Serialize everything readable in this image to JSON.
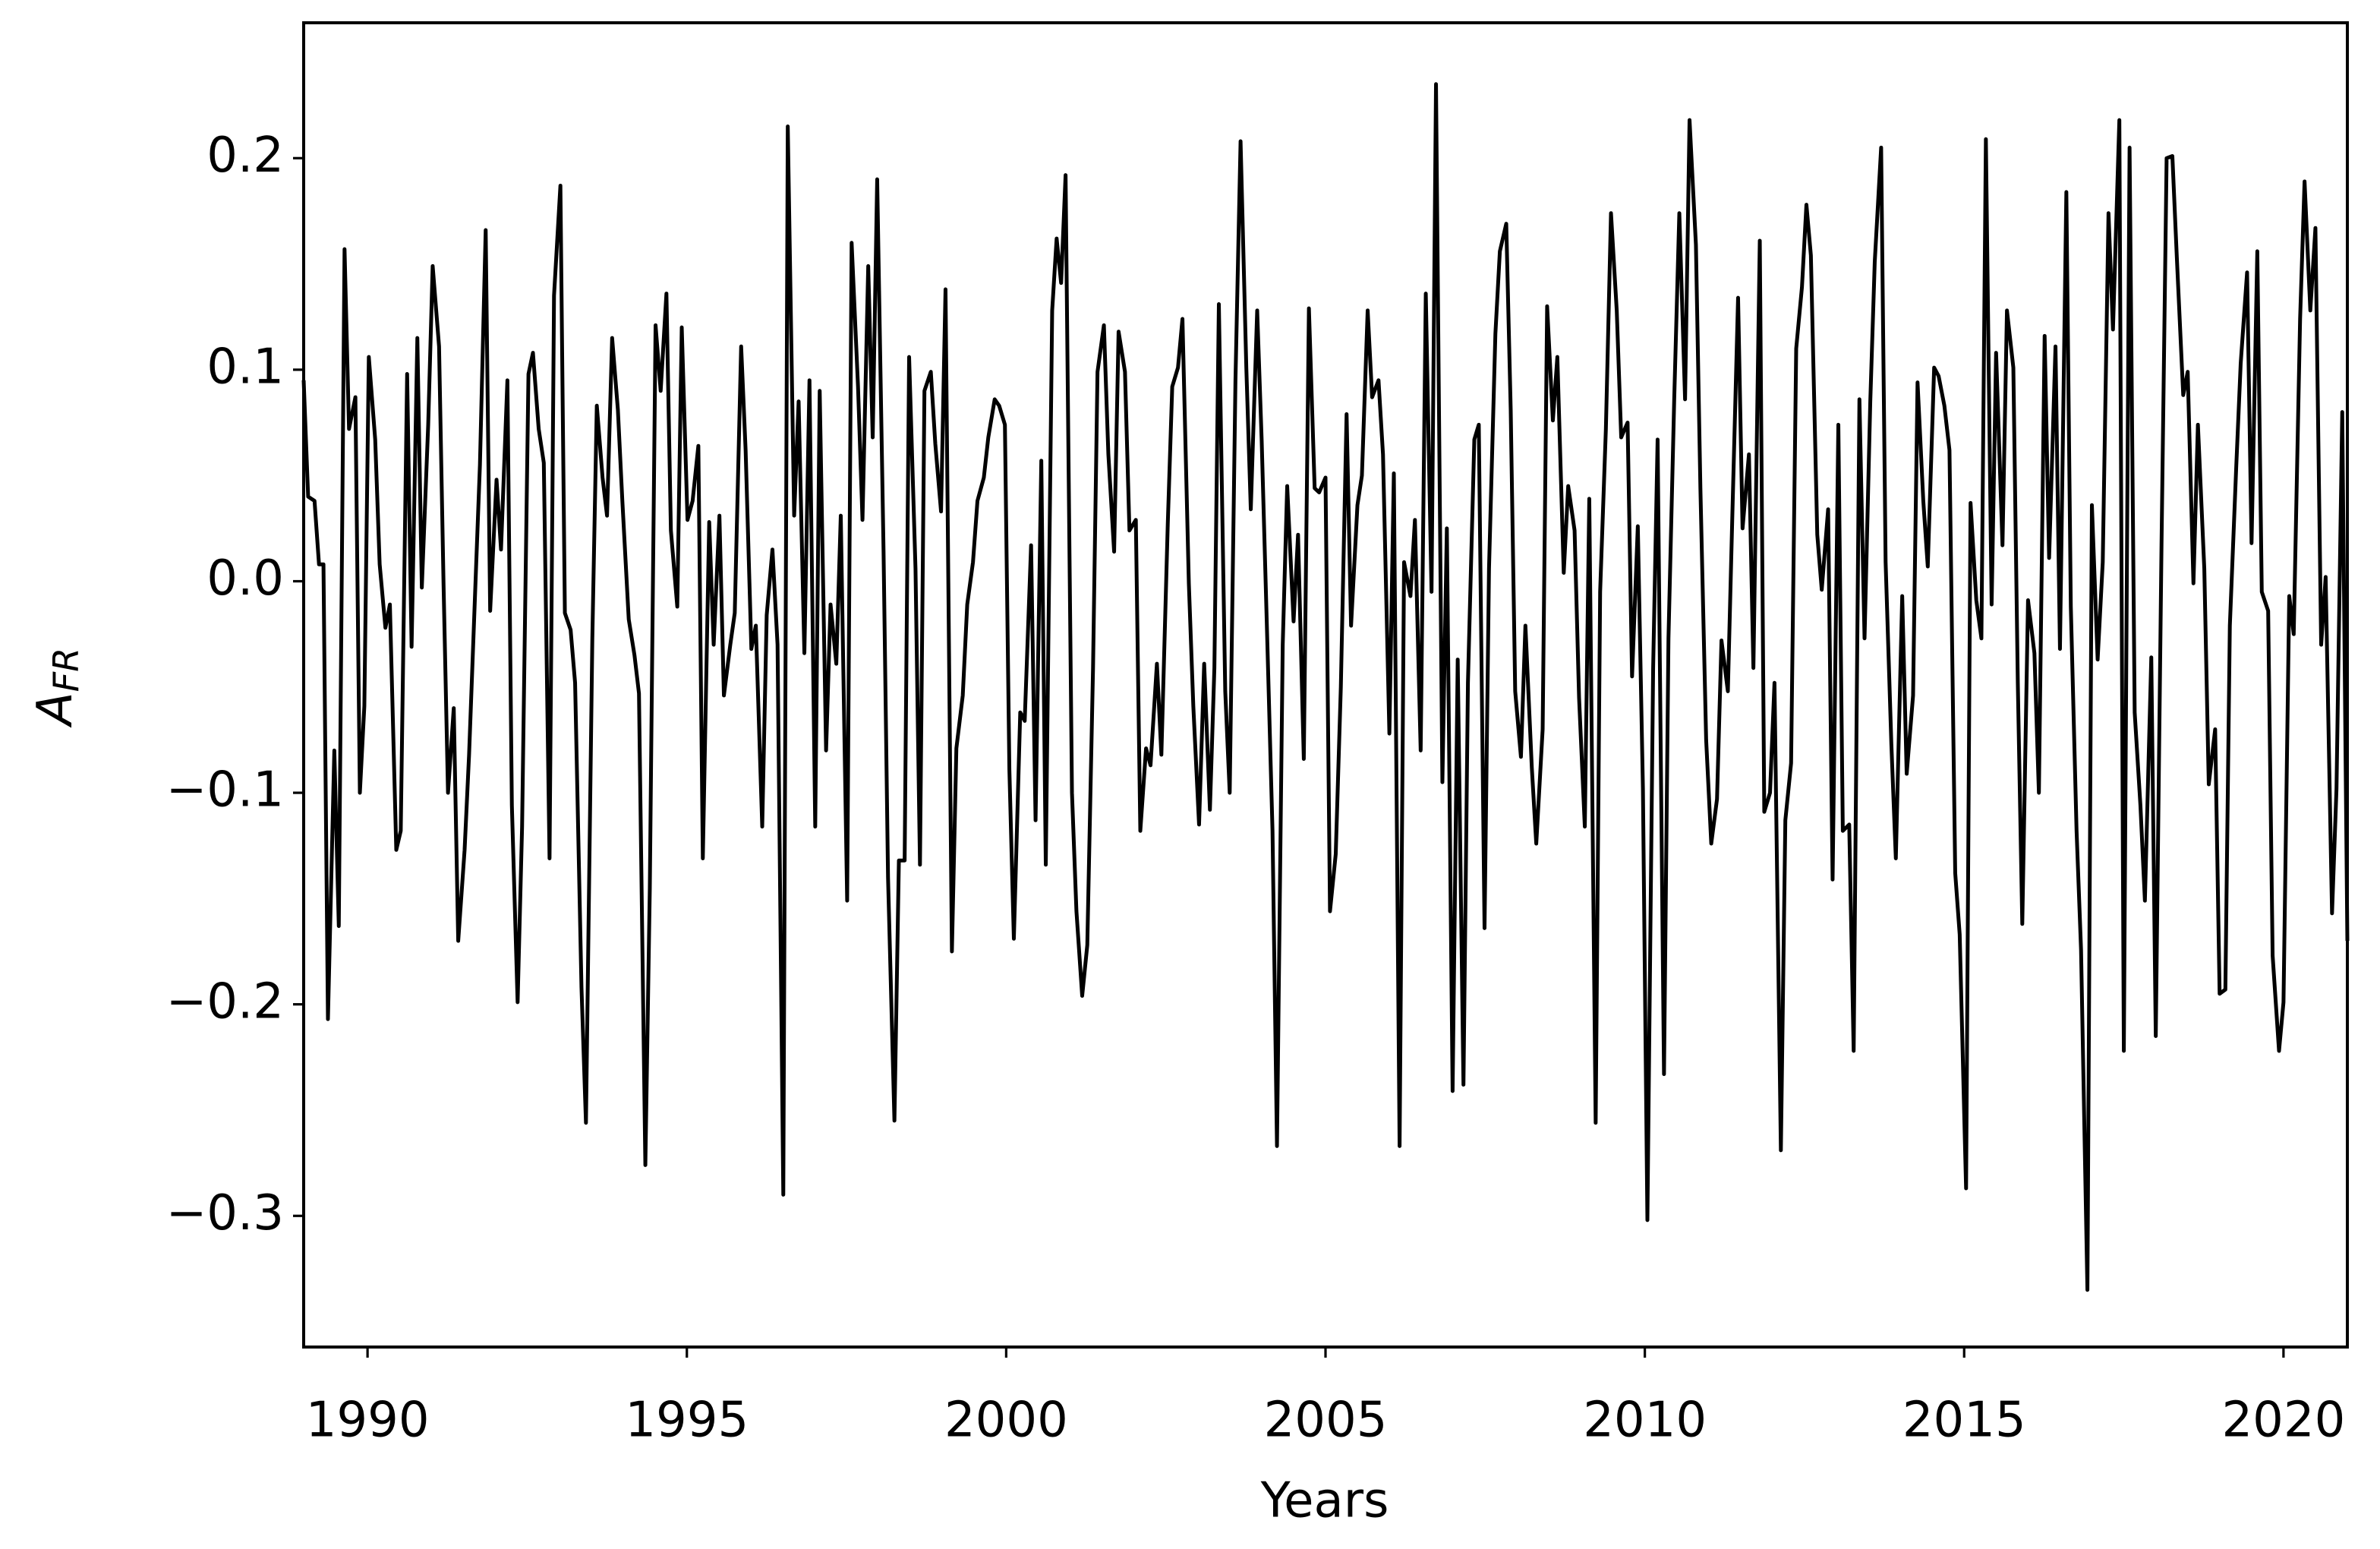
{
  "chart_data": {
    "type": "line",
    "xlabel": "Years",
    "ylabel": {
      "base": "A",
      "sub": "FR"
    },
    "color": "#000000",
    "xlim": [
      1989,
      2021
    ],
    "xticks": [
      1990,
      1995,
      2000,
      2005,
      2010,
      2015,
      2020
    ],
    "ylim": [
      -0.362,
      0.264
    ],
    "yticks": [
      {
        "value": -0.3,
        "label": "−0.3"
      },
      {
        "value": -0.2,
        "label": "−0.2"
      },
      {
        "value": -0.1,
        "label": "−0.1"
      },
      {
        "value": 0,
        "label": "0.0"
      },
      0.1,
      0.2
    ],
    "x": [
      1989.0,
      1989.07,
      1989.17,
      1989.24,
      1989.31,
      1989.38,
      1989.48,
      1989.55,
      1989.64,
      1989.71,
      1989.81,
      1989.88,
      1989.95,
      1990.02,
      1990.12,
      1990.19,
      1990.28,
      1990.35,
      1990.45,
      1990.52,
      1990.62,
      1990.69,
      1990.78,
      1990.85,
      1990.95,
      1991.02,
      1991.12,
      1991.19,
      1991.26,
      1991.35,
      1991.42,
      1991.52,
      1991.59,
      1991.69,
      1991.76,
      1991.85,
      1991.92,
      1992.02,
      1992.09,
      1992.19,
      1992.26,
      1992.35,
      1992.42,
      1992.52,
      1992.59,
      1992.68,
      1992.76,
      1992.85,
      1992.92,
      1993.02,
      1993.09,
      1993.18,
      1993.25,
      1993.35,
      1993.42,
      1993.52,
      1993.59,
      1993.68,
      1993.75,
      1993.83,
      1993.92,
      1993.99,
      1994.09,
      1994.18,
      1994.25,
      1994.35,
      1994.42,
      1994.51,
      1994.59,
      1994.68,
      1994.75,
      1994.85,
      1994.92,
      1995.01,
      1995.09,
      1995.18,
      1995.25,
      1995.35,
      1995.42,
      1995.51,
      1995.58,
      1995.68,
      1995.75,
      1995.85,
      1995.92,
      1996.01,
      1996.08,
      1996.18,
      1996.25,
      1996.34,
      1996.42,
      1996.51,
      1996.58,
      1996.68,
      1996.75,
      1996.84,
      1996.92,
      1997.01,
      1997.08,
      1997.18,
      1997.25,
      1997.34,
      1997.41,
      1997.51,
      1997.58,
      1997.68,
      1997.75,
      1997.84,
      1997.91,
      1997.98,
      1998.08,
      1998.15,
      1998.25,
      1998.32,
      1998.41,
      1998.48,
      1998.58,
      1998.65,
      1998.72,
      1998.82,
      1998.89,
      1998.98,
      1999.05,
      1999.15,
      1999.22,
      1999.32,
      1999.39,
      1999.48,
      1999.55,
      1999.65,
      1999.72,
      1999.82,
      1999.89,
      1999.98,
      2000.05,
      2000.12,
      2000.22,
      2000.29,
      2000.39,
      2000.46,
      2000.55,
      2000.62,
      2000.72,
      2000.79,
      2000.86,
      2000.93,
      2001.03,
      2001.1,
      2001.19,
      2001.27,
      2001.36,
      2001.43,
      2001.53,
      2001.6,
      2001.69,
      2001.76,
      2001.86,
      2001.93,
      2002.03,
      2002.1,
      2002.19,
      2002.26,
      2002.36,
      2002.43,
      2002.53,
      2002.6,
      2002.69,
      2002.76,
      2002.86,
      2002.93,
      2003.02,
      2003.1,
      2003.19,
      2003.26,
      2003.33,
      2003.43,
      2003.5,
      2003.59,
      2003.67,
      2003.76,
      2003.83,
      2003.93,
      2004.0,
      2004.09,
      2004.17,
      2004.24,
      2004.33,
      2004.4,
      2004.5,
      2004.57,
      2004.66,
      2004.74,
      2004.83,
      2004.9,
      2005.0,
      2005.07,
      2005.16,
      2005.24,
      2005.33,
      2005.4,
      2005.5,
      2005.57,
      2005.66,
      2005.73,
      2005.83,
      2005.9,
      2006.0,
      2006.07,
      2006.16,
      2006.23,
      2006.33,
      2006.4,
      2006.49,
      2006.57,
      2006.66,
      2006.73,
      2006.83,
      2006.9,
      2006.99,
      2007.07,
      2007.16,
      2007.23,
      2007.33,
      2007.4,
      2007.49,
      2007.56,
      2007.66,
      2007.73,
      2007.83,
      2007.9,
      2007.97,
      2008.06,
      2008.13,
      2008.23,
      2008.3,
      2008.4,
      2008.47,
      2008.56,
      2008.63,
      2008.73,
      2008.8,
      2008.9,
      2008.97,
      2009.06,
      2009.13,
      2009.23,
      2009.3,
      2009.39,
      2009.47,
      2009.56,
      2009.63,
      2009.73,
      2009.8,
      2009.89,
      2009.97,
      2010.04,
      2010.13,
      2010.2,
      2010.3,
      2010.37,
      2010.46,
      2010.54,
      2010.63,
      2010.7,
      2010.8,
      2010.87,
      2010.96,
      2011.04,
      2011.13,
      2011.2,
      2011.3,
      2011.37,
      2011.46,
      2011.53,
      2011.63,
      2011.7,
      2011.8,
      2011.87,
      2011.96,
      2012.03,
      2012.13,
      2012.2,
      2012.29,
      2012.37,
      2012.46,
      2012.53,
      2012.6,
      2012.7,
      2012.77,
      2012.87,
      2012.94,
      2013.03,
      2013.1,
      2013.2,
      2013.27,
      2013.36,
      2013.44,
      2013.53,
      2013.6,
      2013.7,
      2013.77,
      2013.86,
      2013.93,
      2014.03,
      2014.1,
      2014.2,
      2014.27,
      2014.36,
      2014.43,
      2014.53,
      2014.6,
      2014.69,
      2014.77,
      2014.86,
      2014.93,
      2015.03,
      2015.1,
      2015.19,
      2015.27,
      2015.34,
      2015.43,
      2015.5,
      2015.6,
      2015.67,
      2015.77,
      2015.84,
      2015.91,
      2016.0,
      2016.1,
      2016.17,
      2016.26,
      2016.33,
      2016.43,
      2016.5,
      2016.6,
      2016.67,
      2016.76,
      2016.83,
      2016.93,
      2017.0,
      2017.09,
      2017.17,
      2017.26,
      2017.33,
      2017.43,
      2017.5,
      2017.59,
      2017.67,
      2017.76,
      2017.83,
      2017.93,
      2018.0,
      2018.09,
      2018.17,
      2018.26,
      2018.33,
      2018.43,
      2018.5,
      2018.59,
      2018.66,
      2018.76,
      2018.83,
      2018.93,
      2019.0,
      2019.09,
      2019.16,
      2019.26,
      2019.33,
      2019.43,
      2019.5,
      2019.59,
      2019.66,
      2019.76,
      2019.83,
      2019.93,
      2020.0,
      2020.09,
      2020.16,
      2020.26,
      2020.33,
      2020.42,
      2020.5,
      2020.59,
      2020.66,
      2020.76,
      2020.83,
      2020.92,
      2021.0
    ],
    "values": [
      0.095,
      0.04,
      0.038,
      0.008,
      0.008,
      -0.207,
      -0.08,
      -0.163,
      0.157,
      0.072,
      0.087,
      -0.1,
      -0.059,
      0.106,
      0.067,
      0.008,
      -0.022,
      -0.011,
      -0.127,
      -0.118,
      0.098,
      -0.031,
      0.115,
      -0.003,
      0.074,
      0.149,
      0.111,
      -0.001,
      -0.1,
      -0.06,
      -0.17,
      -0.127,
      -0.082,
      -0.001,
      0.055,
      0.166,
      -0.014,
      0.048,
      0.015,
      0.095,
      -0.106,
      -0.199,
      -0.116,
      0.098,
      0.108,
      0.072,
      0.056,
      -0.131,
      0.135,
      0.187,
      -0.015,
      -0.023,
      -0.048,
      -0.192,
      -0.256,
      -0.027,
      0.083,
      0.049,
      0.031,
      0.115,
      0.081,
      0.038,
      -0.018,
      -0.035,
      -0.053,
      -0.276,
      -0.145,
      0.121,
      0.09,
      0.136,
      0.024,
      -0.012,
      0.12,
      0.029,
      0.038,
      0.064,
      -0.131,
      0.028,
      -0.03,
      0.031,
      -0.054,
      -0.03,
      -0.015,
      0.111,
      0.062,
      -0.032,
      -0.021,
      -0.116,
      -0.016,
      0.015,
      -0.03,
      -0.29,
      0.215,
      0.031,
      0.085,
      -0.034,
      0.095,
      -0.116,
      0.09,
      -0.08,
      -0.011,
      -0.039,
      0.031,
      -0.151,
      0.16,
      0.092,
      0.029,
      0.149,
      0.068,
      0.19,
      0.014,
      -0.14,
      -0.255,
      -0.132,
      -0.132,
      0.106,
      0.006,
      -0.134,
      0.09,
      0.099,
      0.065,
      0.033,
      0.138,
      -0.175,
      -0.079,
      -0.054,
      -0.011,
      0.009,
      0.038,
      0.049,
      0.068,
      0.086,
      0.083,
      0.074,
      -0.089,
      -0.169,
      -0.062,
      -0.066,
      0.017,
      -0.113,
      0.057,
      -0.134,
      0.128,
      0.162,
      0.141,
      0.192,
      -0.1,
      -0.156,
      -0.196,
      -0.172,
      -0.041,
      0.099,
      0.121,
      0.06,
      0.014,
      0.118,
      0.099,
      0.024,
      0.029,
      -0.118,
      -0.079,
      -0.087,
      -0.039,
      -0.082,
      0.027,
      0.092,
      0.101,
      0.124,
      -0.001,
      -0.059,
      -0.115,
      -0.039,
      -0.108,
      -0.041,
      0.131,
      -0.052,
      -0.1,
      0.095,
      0.208,
      0.101,
      0.034,
      0.128,
      0.067,
      -0.03,
      -0.118,
      -0.267,
      -0.03,
      0.045,
      -0.019,
      0.022,
      -0.084,
      0.129,
      0.044,
      0.042,
      0.049,
      -0.156,
      -0.129,
      -0.05,
      0.079,
      -0.021,
      0.036,
      0.05,
      0.128,
      0.087,
      0.095,
      0.06,
      -0.072,
      0.051,
      -0.267,
      0.009,
      -0.007,
      0.029,
      -0.08,
      0.136,
      -0.005,
      0.235,
      -0.095,
      0.025,
      -0.241,
      -0.037,
      -0.238,
      -0.048,
      0.067,
      0.074,
      -0.164,
      0.006,
      0.117,
      0.156,
      0.169,
      0.081,
      -0.052,
      -0.083,
      -0.021,
      -0.088,
      -0.124,
      -0.07,
      0.13,
      0.076,
      0.106,
      0.004,
      0.045,
      0.024,
      -0.055,
      -0.116,
      0.039,
      -0.256,
      -0.005,
      0.072,
      0.174,
      0.128,
      0.068,
      0.075,
      -0.045,
      0.026,
      -0.098,
      -0.302,
      -0.041,
      0.067,
      -0.233,
      -0.027,
      0.086,
      0.174,
      0.086,
      0.218,
      0.159,
      0.044,
      -0.075,
      -0.124,
      -0.103,
      -0.028,
      -0.052,
      0.031,
      0.134,
      0.025,
      0.06,
      -0.041,
      0.161,
      -0.109,
      -0.1,
      -0.048,
      -0.269,
      -0.113,
      -0.086,
      0.11,
      0.139,
      0.178,
      0.154,
      0.022,
      -0.004,
      0.034,
      -0.141,
      0.074,
      -0.118,
      -0.115,
      -0.222,
      0.086,
      -0.027,
      0.085,
      0.151,
      0.205,
      0.009,
      -0.077,
      -0.131,
      -0.007,
      -0.091,
      -0.054,
      0.094,
      0.038,
      0.007,
      0.101,
      0.097,
      0.083,
      0.062,
      -0.138,
      -0.167,
      -0.287,
      0.037,
      -0.009,
      -0.027,
      0.209,
      -0.011,
      0.108,
      0.017,
      0.128,
      0.101,
      -0.048,
      -0.162,
      -0.009,
      -0.034,
      -0.1,
      0.116,
      0.011,
      0.111,
      -0.032,
      0.184,
      -0.012,
      -0.118,
      -0.174,
      -0.335,
      0.036,
      -0.037,
      0.009,
      0.174,
      0.119,
      0.218,
      -0.222,
      0.205,
      -0.062,
      -0.106,
      -0.151,
      -0.036,
      -0.215,
      0.017,
      0.2,
      0.201,
      0.153,
      0.088,
      0.099,
      -0.001,
      0.074,
      0.006,
      -0.096,
      -0.07,
      -0.195,
      -0.193,
      -0.021,
      0.054,
      0.103,
      0.146,
      0.018,
      0.156,
      -0.005,
      -0.014,
      -0.177,
      -0.222,
      -0.199,
      -0.007,
      -0.025,
      0.124,
      0.189,
      0.128,
      0.167,
      -0.03,
      0.002,
      -0.157,
      -0.098,
      0.08,
      -0.17
    ]
  }
}
